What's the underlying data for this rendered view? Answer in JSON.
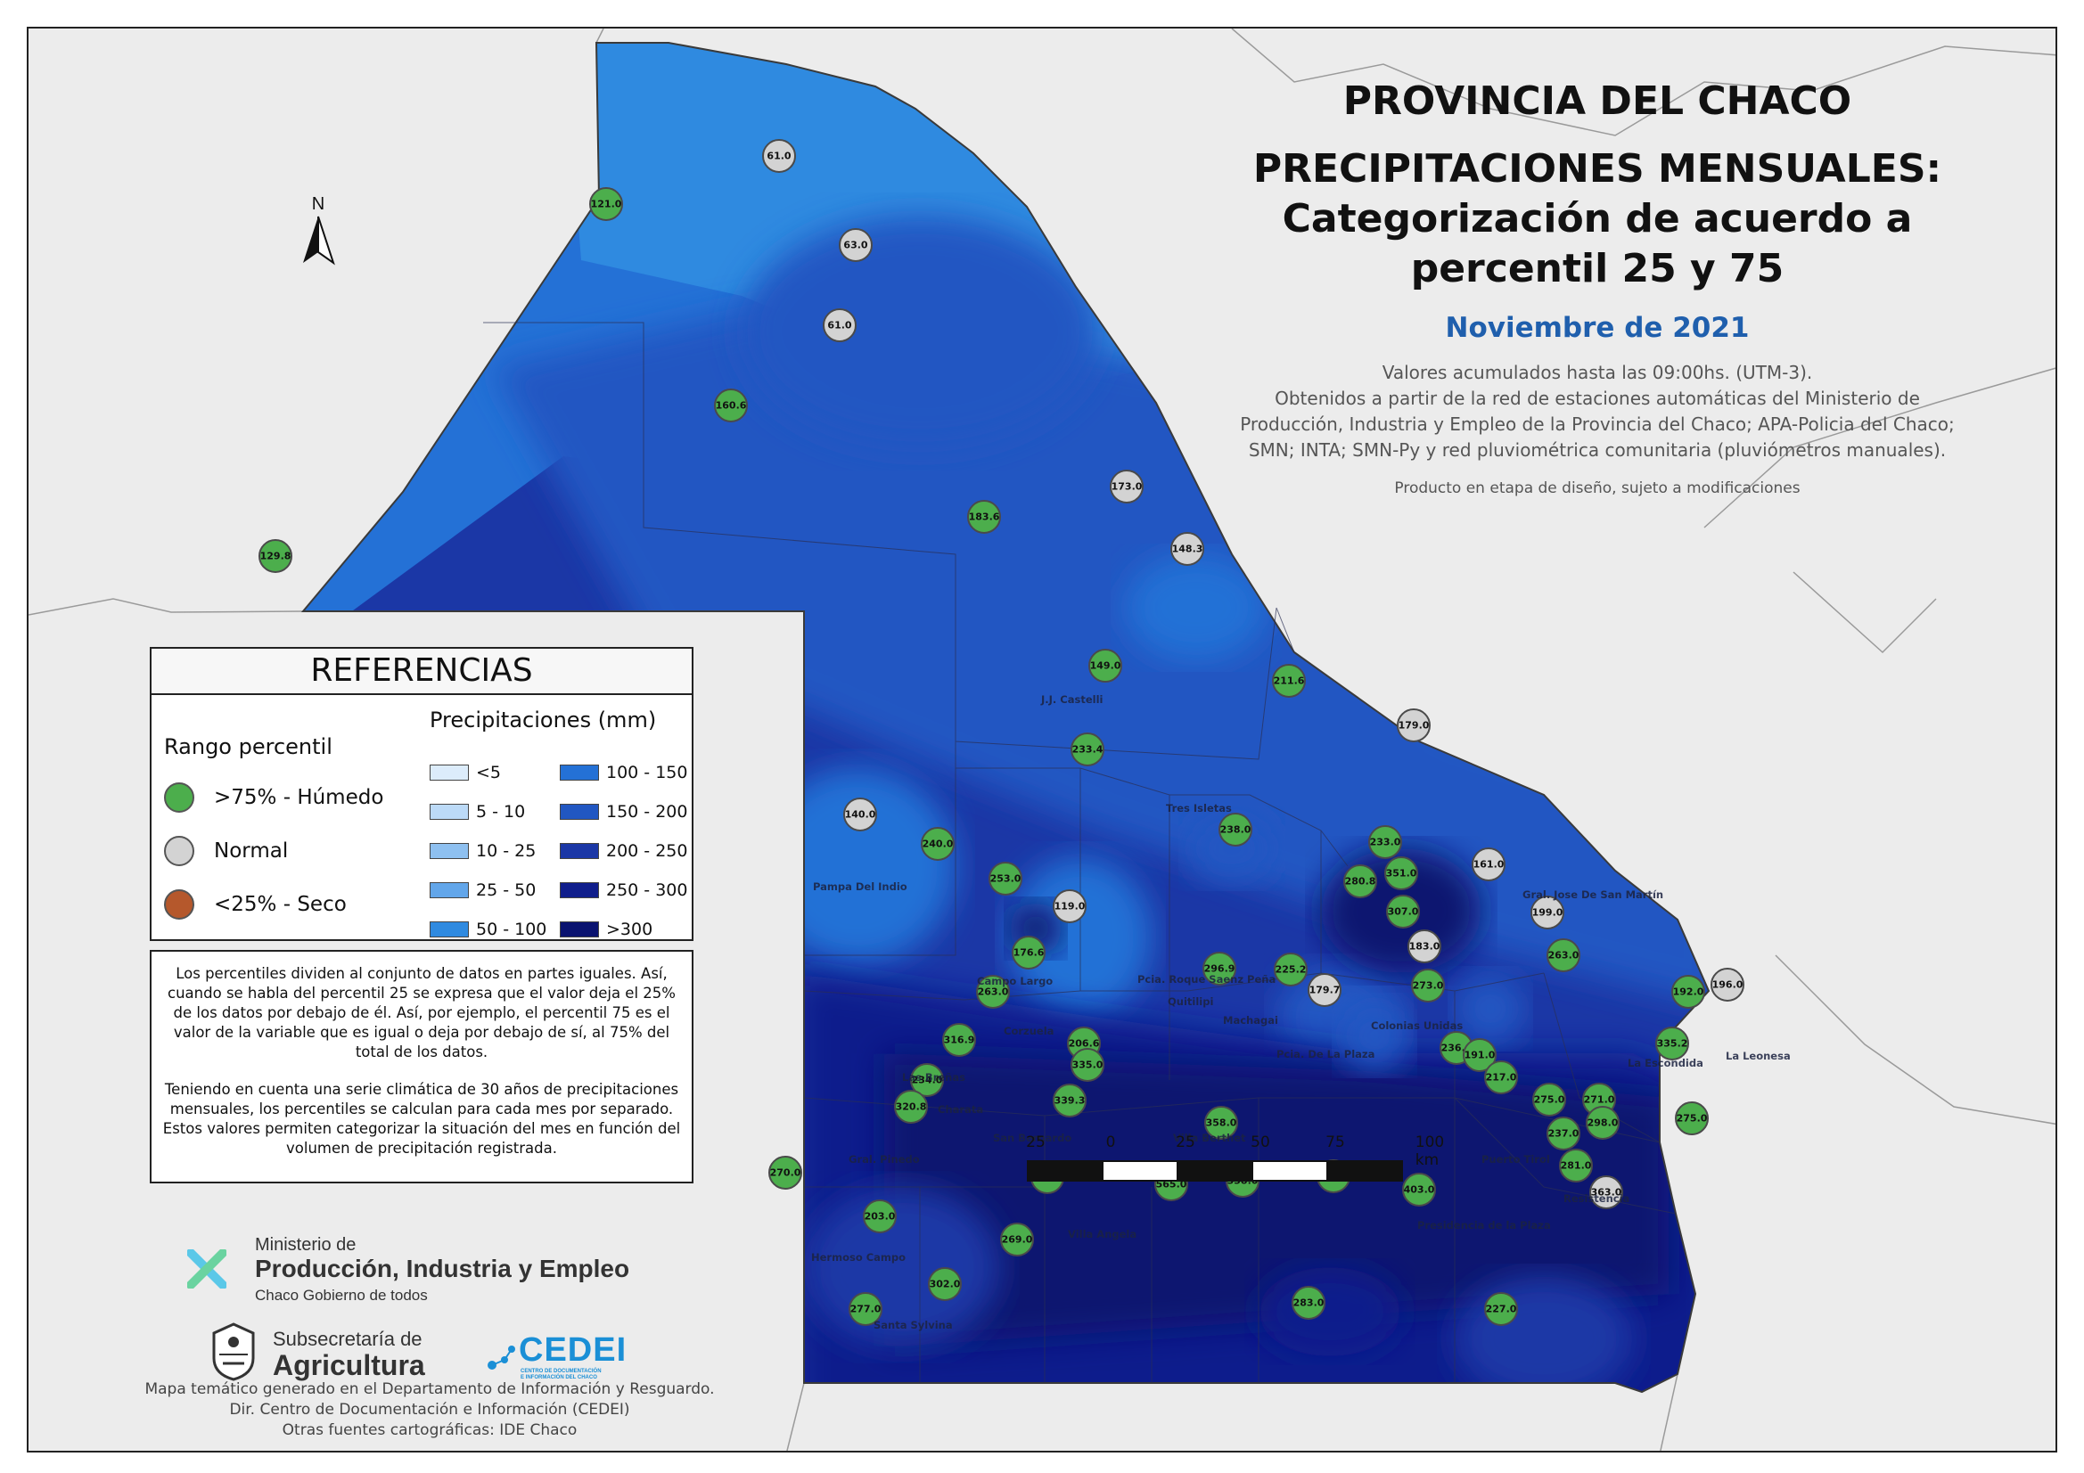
{
  "title": {
    "line1": "PROVINCIA DEL CHACO",
    "line2": "PRECIPITACIONES MENSUALES:",
    "line3": "Categorización de acuerdo a",
    "line4": "percentil 25 y 75"
  },
  "month": "Noviembre de 2021",
  "description": [
    "Valores acumulados hasta las 09:00hs. (UTM-3).",
    "Obtenidos a partir de la red de estaciones automáticas del Ministerio de",
    "Producción, Industria y Empleo de la Provincia del Chaco; APA-Policia del Chaco;",
    "SMN; INTA; SMN-Py y red pluviométrica comunitaria (pluviómetros manuales)."
  ],
  "note": "Producto en etapa de diseño, sujeto a modificaciones",
  "north_label": "N",
  "legend": {
    "title": "REFERENCIAS",
    "percentile_heading": "Rango percentil",
    "percentile_items": [
      {
        "label": ">75% - Húmedo",
        "color": "#4cae4c"
      },
      {
        "label": "Normal",
        "color": "#d3d3d3"
      },
      {
        "label": "<25% - Seco",
        "color": "#b5582c"
      }
    ],
    "precip_heading": "Precipitaciones (mm)",
    "precip_items": [
      {
        "label": "<5",
        "color": "#dcecfb"
      },
      {
        "label": "5 - 10",
        "color": "#bcdaf7"
      },
      {
        "label": "10 - 25",
        "color": "#8ec0f0"
      },
      {
        "label": "25 - 50",
        "color": "#62a6ea"
      },
      {
        "label": "50 - 100",
        "color": "#2f8ae0"
      },
      {
        "label": "100 - 150",
        "color": "#2471d6"
      },
      {
        "label": "150 - 200",
        "color": "#2157c2"
      },
      {
        "label": "200 - 250",
        "color": "#1b37a6"
      },
      {
        "label": "250 - 300",
        "color": "#101e8c"
      },
      {
        "label": ">300",
        "color": "#0a1370"
      }
    ]
  },
  "explanation": [
    "Los percentiles dividen al conjunto de datos en partes iguales. Así, cuando se habla del percentil 25 se expresa que el valor deja el 25% de los datos por debajo de él. Así, por ejemplo, el percentil 75 es el valor de la variable que es igual o deja por debajo de sí, al 75% del total de los datos.",
    "Teniendo en cuenta una serie climática de 30 años de precipitaciones mensuales, los percentiles se calculan para cada mes por separado. Estos valores permiten categorizar la situación del mes en función del volumen de precipitación registrada."
  ],
  "logos": {
    "ministerio_line1": "Ministerio de",
    "ministerio_line2": "Producción, Industria y Empleo",
    "ministerio_line3": "Chaco Gobierno de todos",
    "subsecretaria_line1": "Subsecretaría de",
    "subsecretaria_line2": "Agricultura",
    "cedei": "CEDEI",
    "cedei_sub1": "CENTRO DE DOCUMENTACIÓN",
    "cedei_sub2": "E INFORMACIÓN DEL CHACO"
  },
  "credits": [
    "Mapa temático generado en el Departamento de Información y Resguardo.",
    "Dir. Centro de Documentación e Información (CEDEI)",
    "Otras fuentes cartográficas: IDE Chaco"
  ],
  "scale": {
    "labels": [
      "25",
      "0",
      "25",
      "50",
      "75",
      "100 km"
    ]
  },
  "stations": [
    {
      "value": "121.0",
      "category": "humedo"
    },
    {
      "value": "61.0",
      "category": "normal"
    },
    {
      "value": "63.0",
      "category": "normal"
    },
    {
      "value": "61.0",
      "category": "normal"
    },
    {
      "value": "160.6",
      "category": "humedo"
    },
    {
      "value": "129.8",
      "category": "humedo"
    },
    {
      "value": "173.0",
      "category": "normal"
    },
    {
      "value": "183.6",
      "category": "humedo"
    },
    {
      "value": "148.3",
      "category": "normal"
    },
    {
      "value": "149.0",
      "category": "humedo"
    },
    {
      "value": "211.6",
      "category": "humedo"
    },
    {
      "value": "179.0",
      "category": "normal"
    },
    {
      "value": "233.4",
      "category": "humedo"
    },
    {
      "value": "140.0",
      "category": "normal"
    },
    {
      "value": "240.0",
      "category": "humedo"
    },
    {
      "value": "238.0",
      "category": "humedo"
    },
    {
      "value": "233.0",
      "category": "humedo"
    },
    {
      "value": "161.0",
      "category": "normal"
    },
    {
      "value": "253.0",
      "category": "humedo"
    },
    {
      "value": "280.8",
      "category": "humedo"
    },
    {
      "value": "351.0",
      "category": "humedo"
    },
    {
      "value": "119.0",
      "category": "normal"
    },
    {
      "value": "307.0",
      "category": "humedo"
    },
    {
      "value": "199.0",
      "category": "normal"
    },
    {
      "value": "176.6",
      "category": "humedo"
    },
    {
      "value": "183.0",
      "category": "normal"
    },
    {
      "value": "263.0",
      "category": "humedo"
    },
    {
      "value": "296.9",
      "category": "humedo"
    },
    {
      "value": "225.2",
      "category": "humedo"
    },
    {
      "value": "179.7",
      "category": "normal"
    },
    {
      "value": "273.0",
      "category": "humedo"
    },
    {
      "value": "263.0",
      "category": "humedo"
    },
    {
      "value": "196.0",
      "category": "normal"
    },
    {
      "value": "192.0",
      "category": "humedo"
    },
    {
      "value": "316.9",
      "category": "humedo"
    },
    {
      "value": "206.6",
      "category": "humedo"
    },
    {
      "value": "236.0",
      "category": "humedo"
    },
    {
      "value": "191.0",
      "category": "humedo"
    },
    {
      "value": "335.2",
      "category": "humedo"
    },
    {
      "value": "335.0",
      "category": "humedo"
    },
    {
      "value": "234.0",
      "category": "humedo"
    },
    {
      "value": "217.0",
      "category": "humedo"
    },
    {
      "value": "339.3",
      "category": "humedo"
    },
    {
      "value": "320.8",
      "category": "humedo"
    },
    {
      "value": "275.0",
      "category": "humedo"
    },
    {
      "value": "271.0",
      "category": "humedo"
    },
    {
      "value": "358.0",
      "category": "humedo"
    },
    {
      "value": "298.0",
      "category": "humedo"
    },
    {
      "value": "275.0",
      "category": "humedo"
    },
    {
      "value": "237.0",
      "category": "humedo"
    },
    {
      "value": "270.0",
      "category": "humedo"
    },
    {
      "value": "284.8",
      "category": "humedo"
    },
    {
      "value": "565.0",
      "category": "humedo"
    },
    {
      "value": "338.0",
      "category": "humedo"
    },
    {
      "value": "448.0",
      "category": "humedo"
    },
    {
      "value": "403.0",
      "category": "humedo"
    },
    {
      "value": "281.0",
      "category": "humedo"
    },
    {
      "value": "363.0",
      "category": "normal"
    },
    {
      "value": "203.0",
      "category": "humedo"
    },
    {
      "value": "269.0",
      "category": "humedo"
    },
    {
      "value": "302.0",
      "category": "humedo"
    },
    {
      "value": "283.0",
      "category": "humedo"
    },
    {
      "value": "227.0",
      "category": "humedo"
    },
    {
      "value": "277.0",
      "category": "humedo"
    }
  ],
  "places": [
    "J.J. Castelli",
    "Tres Isletas",
    "Pampa Del Indio",
    "Gral. Jose De San Martín",
    "Campo Largo",
    "Pcia. Roque Saenz Peña",
    "Quitilipi",
    "Machagai",
    "Pcia. De La Plaza",
    "Colonias Unidas",
    "Corzuela",
    "Las Breñas",
    "La Escondida",
    "Charata",
    "San Bernardo",
    "Villa Berthet",
    "Gral. Pinedo",
    "Villa Angela",
    "Hermoso Campo",
    "Santa Sylvina",
    "Puerto Tirol",
    "Resistencia",
    "La Leonesa",
    "Presidencia de la Plaza"
  ]
}
